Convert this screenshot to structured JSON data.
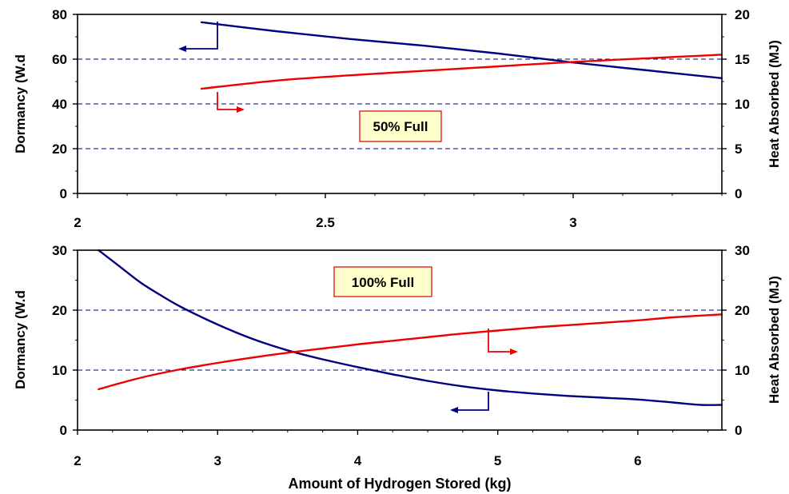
{
  "chart_data": [
    {
      "type": "line",
      "annotation": "50% Full",
      "xlabel": "",
      "ylabel": "Dormancy (W.d",
      "y2label": "Heat Absorbed (MJ)",
      "xlim": [
        2,
        3.3
      ],
      "ylim": [
        0,
        80
      ],
      "y2lim": [
        0,
        20
      ],
      "x_ticks": [
        "2",
        "2.5",
        "3"
      ],
      "y_ticks": [
        "0",
        "20",
        "40",
        "60",
        "80"
      ],
      "y2_ticks": [
        "0",
        "5",
        "10",
        "15",
        "20"
      ],
      "grid": "dashed horizontal",
      "series": [
        {
          "axis": "left",
          "color": "#000080",
          "points": [
            [
              2.25,
              76.5
            ],
            [
              2.4,
              72.5
            ],
            [
              2.55,
              69
            ],
            [
              2.7,
              66
            ],
            [
              2.85,
              62.5
            ],
            [
              3.0,
              58.5
            ],
            [
              3.15,
              55
            ],
            [
              3.3,
              51.5
            ]
          ]
        },
        {
          "axis": "right",
          "color": "#ee0000",
          "points": [
            [
              2.25,
              11.7
            ],
            [
              2.4,
              12.6
            ],
            [
              2.55,
              13.2
            ],
            [
              2.7,
              13.7
            ],
            [
              2.85,
              14.2
            ],
            [
              3.0,
              14.7
            ],
            [
              3.15,
              15.1
            ],
            [
              3.3,
              15.5
            ]
          ]
        }
      ]
    },
    {
      "type": "line",
      "annotation": "100% Full",
      "xlabel": "Amount of Hydrogen Stored (kg)",
      "ylabel": "Dormancy (W.d",
      "y2label": "Heat Absorbed (MJ)",
      "xlim": [
        2,
        6.6
      ],
      "ylim": [
        0,
        30
      ],
      "y2lim": [
        0,
        30
      ],
      "x_ticks": [
        "2",
        "3",
        "4",
        "5",
        "6"
      ],
      "y_ticks": [
        "0",
        "10",
        "20",
        "30"
      ],
      "y2_ticks": [
        "0",
        "10",
        "20",
        "30"
      ],
      "grid": "dashed horizontal",
      "series": [
        {
          "axis": "left",
          "color": "#000080",
          "points": [
            [
              2.15,
              30
            ],
            [
              2.3,
              27.3
            ],
            [
              2.45,
              24.6
            ],
            [
              2.6,
              22.4
            ],
            [
              2.75,
              20.4
            ],
            [
              3.0,
              17.6
            ],
            [
              3.25,
              15.2
            ],
            [
              3.5,
              13.3
            ],
            [
              3.75,
              11.8
            ],
            [
              4.0,
              10.5
            ],
            [
              4.25,
              9.3
            ],
            [
              4.5,
              8.2
            ],
            [
              4.75,
              7.3
            ],
            [
              5.0,
              6.6
            ],
            [
              5.25,
              6.1
            ],
            [
              5.5,
              5.7
            ],
            [
              5.75,
              5.4
            ],
            [
              6.0,
              5.1
            ],
            [
              6.25,
              4.6
            ],
            [
              6.45,
              4.2
            ],
            [
              6.6,
              4.2
            ]
          ]
        },
        {
          "axis": "right",
          "color": "#ee0000",
          "points": [
            [
              2.15,
              6.8
            ],
            [
              2.3,
              7.8
            ],
            [
              2.5,
              9.0
            ],
            [
              2.75,
              10.2
            ],
            [
              3.0,
              11.2
            ],
            [
              3.25,
              12.1
            ],
            [
              3.5,
              12.9
            ],
            [
              3.75,
              13.6
            ],
            [
              4.0,
              14.3
            ],
            [
              4.25,
              14.9
            ],
            [
              4.5,
              15.5
            ],
            [
              4.75,
              16.1
            ],
            [
              5.0,
              16.6
            ],
            [
              5.25,
              17.1
            ],
            [
              5.5,
              17.5
            ],
            [
              5.75,
              17.9
            ],
            [
              6.0,
              18.3
            ],
            [
              6.25,
              18.8
            ],
            [
              6.6,
              19.3
            ]
          ]
        }
      ]
    }
  ]
}
